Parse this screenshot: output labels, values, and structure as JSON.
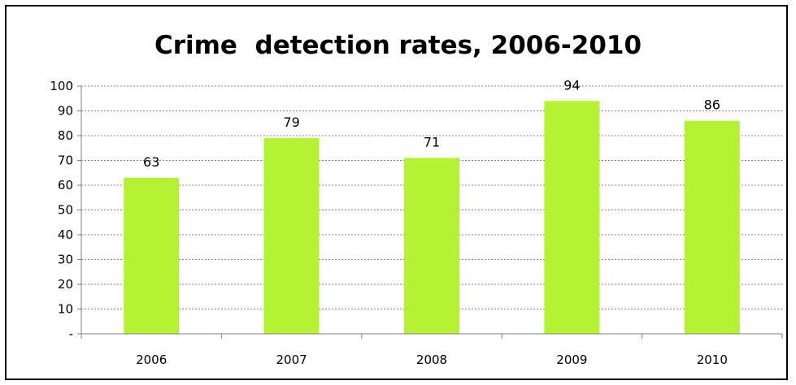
{
  "chart_data": {
    "type": "bar",
    "title": "Crime  detection rates, 2006-2010",
    "categories": [
      "2006",
      "2007",
      "2008",
      "2009",
      "2010"
    ],
    "values": [
      63,
      79,
      71,
      94,
      86
    ],
    "data_labels": [
      "63",
      "79",
      "71",
      "94",
      "86"
    ],
    "ylim": [
      0,
      100
    ],
    "yticks": [
      0,
      10,
      20,
      30,
      40,
      50,
      60,
      70,
      80,
      90,
      100
    ],
    "ytick_labels": [
      "-",
      "10",
      "20",
      "30",
      "40",
      "50",
      "60",
      "70",
      "80",
      "90",
      "100"
    ],
    "grid": true,
    "legend": "none",
    "colors": {
      "bar": "#b5f234",
      "grid": "#808080",
      "axis": "#808080"
    }
  }
}
